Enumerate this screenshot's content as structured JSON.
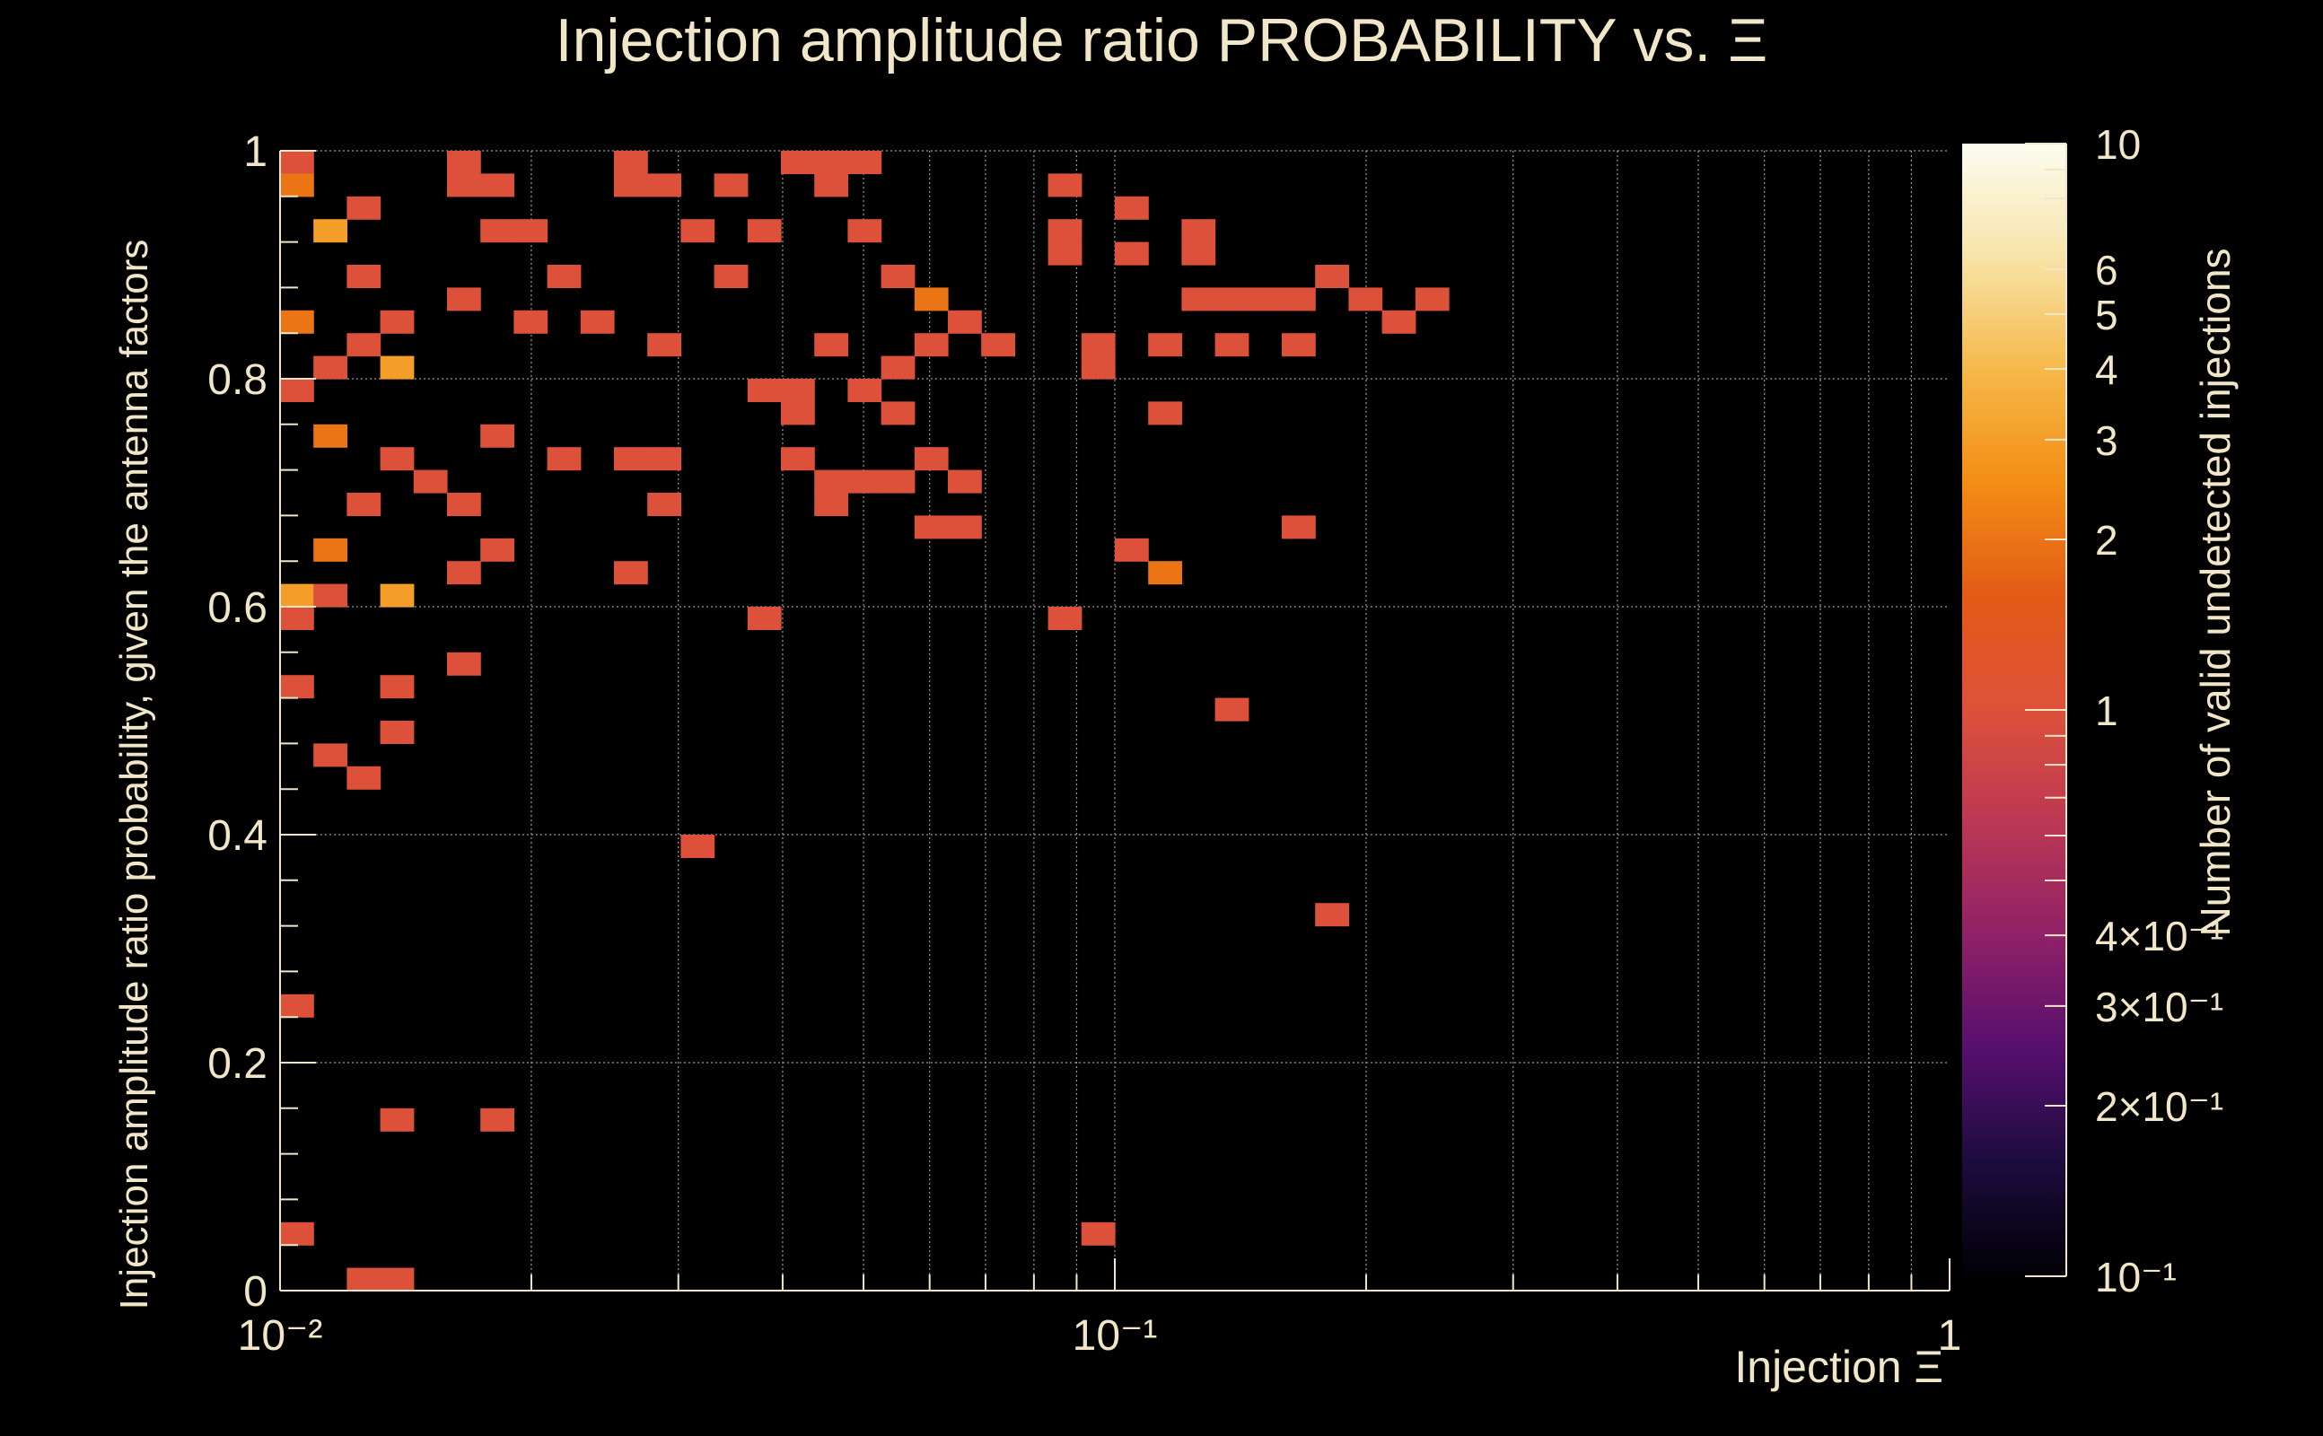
{
  "colors": {
    "background": "#000000",
    "text": "#f2e6c8",
    "grid": "#9a9a9a",
    "cmap_stops": [
      "#000004",
      "#1c0c3e",
      "#560f6e",
      "#8f2168",
      "#bc3754",
      "#dd513a",
      "#e35a17",
      "#f38d14",
      "#f6b84a",
      "#f7e4a8",
      "#fcfcf0"
    ]
  },
  "chart_data": {
    "type": "heatmap",
    "title": "Injection amplitude ratio PROBABILITY vs.  Ξ",
    "xlabel": "Injection Ξ",
    "ylabel": "Injection amplitude ratio probability, given the antenna factors",
    "zlabel": "Number of valid undetected injections",
    "xscale": "log",
    "xlim": [
      0.01,
      1
    ],
    "ylim": [
      0,
      1
    ],
    "zscale": "log",
    "zlim": [
      0.1,
      10
    ],
    "x_ticks": [
      {
        "value": 0.01,
        "label": "10⁻²"
      },
      {
        "value": 0.1,
        "label": "10⁻¹"
      },
      {
        "value": 1,
        "label": "1"
      }
    ],
    "y_ticks": [
      {
        "value": 0,
        "label": "0"
      },
      {
        "value": 0.2,
        "label": "0.2"
      },
      {
        "value": 0.4,
        "label": "0.4"
      },
      {
        "value": 0.6,
        "label": "0.6"
      },
      {
        "value": 0.8,
        "label": "0.8"
      },
      {
        "value": 1,
        "label": "1"
      }
    ],
    "z_ticks": [
      {
        "value": 10,
        "label": "10"
      },
      {
        "value": 6,
        "label": "6"
      },
      {
        "value": 5,
        "label": "5"
      },
      {
        "value": 4,
        "label": "4"
      },
      {
        "value": 3,
        "label": "3"
      },
      {
        "value": 2,
        "label": "2"
      },
      {
        "value": 1,
        "label": "1"
      },
      {
        "value": 0.4,
        "label": "4×10⁻¹"
      },
      {
        "value": 0.3,
        "label": "3×10⁻¹"
      },
      {
        "value": 0.2,
        "label": "2×10⁻¹"
      },
      {
        "value": 0.1,
        "label": "10⁻¹"
      }
    ],
    "grid": true,
    "n_xbins": 50,
    "n_ybins": 50,
    "cells": [
      [
        0,
        49,
        1
      ],
      [
        5,
        49,
        1
      ],
      [
        10,
        49,
        1
      ],
      [
        15,
        49,
        1
      ],
      [
        16,
        49,
        1
      ],
      [
        17,
        49,
        1
      ],
      [
        0,
        48,
        2
      ],
      [
        5,
        48,
        1
      ],
      [
        6,
        48,
        1
      ],
      [
        10,
        48,
        1
      ],
      [
        11,
        48,
        1
      ],
      [
        13,
        48,
        1
      ],
      [
        16,
        48,
        1
      ],
      [
        23,
        48,
        1
      ],
      [
        2,
        47,
        1
      ],
      [
        25,
        47,
        1
      ],
      [
        1,
        46,
        3
      ],
      [
        6,
        46,
        1
      ],
      [
        7,
        46,
        1
      ],
      [
        12,
        46,
        1
      ],
      [
        14,
        46,
        1
      ],
      [
        17,
        46,
        1
      ],
      [
        23,
        46,
        1
      ],
      [
        27,
        46,
        1
      ],
      [
        23,
        45,
        1
      ],
      [
        25,
        45,
        1
      ],
      [
        27,
        45,
        1
      ],
      [
        2,
        44,
        1
      ],
      [
        8,
        44,
        1
      ],
      [
        13,
        44,
        1
      ],
      [
        18,
        44,
        1
      ],
      [
        31,
        44,
        1
      ],
      [
        5,
        43,
        1
      ],
      [
        19,
        43,
        2
      ],
      [
        27,
        43,
        1
      ],
      [
        28,
        43,
        1
      ],
      [
        29,
        43,
        1
      ],
      [
        30,
        43,
        1
      ],
      [
        32,
        43,
        1
      ],
      [
        34,
        43,
        1
      ],
      [
        0,
        42,
        2
      ],
      [
        3,
        42,
        1
      ],
      [
        7,
        42,
        1
      ],
      [
        9,
        42,
        1
      ],
      [
        20,
        42,
        1
      ],
      [
        33,
        42,
        1
      ],
      [
        2,
        41,
        1
      ],
      [
        11,
        41,
        1
      ],
      [
        16,
        41,
        1
      ],
      [
        19,
        41,
        1
      ],
      [
        21,
        41,
        1
      ],
      [
        24,
        41,
        1
      ],
      [
        26,
        41,
        1
      ],
      [
        28,
        41,
        1
      ],
      [
        30,
        41,
        1
      ],
      [
        1,
        40,
        1
      ],
      [
        3,
        40,
        3
      ],
      [
        18,
        40,
        1
      ],
      [
        24,
        40,
        1
      ],
      [
        0,
        39,
        1
      ],
      [
        14,
        39,
        1
      ],
      [
        15,
        39,
        1
      ],
      [
        17,
        39,
        1
      ],
      [
        15,
        38,
        1
      ],
      [
        18,
        38,
        1
      ],
      [
        26,
        38,
        1
      ],
      [
        1,
        37,
        2
      ],
      [
        6,
        37,
        1
      ],
      [
        3,
        36,
        1
      ],
      [
        8,
        36,
        1
      ],
      [
        10,
        36,
        1
      ],
      [
        11,
        36,
        1
      ],
      [
        15,
        36,
        1
      ],
      [
        19,
        36,
        1
      ],
      [
        4,
        35,
        1
      ],
      [
        16,
        35,
        1
      ],
      [
        17,
        35,
        1
      ],
      [
        18,
        35,
        1
      ],
      [
        20,
        35,
        1
      ],
      [
        2,
        34,
        1
      ],
      [
        5,
        34,
        1
      ],
      [
        11,
        34,
        1
      ],
      [
        16,
        34,
        1
      ],
      [
        19,
        33,
        1
      ],
      [
        20,
        33,
        1
      ],
      [
        30,
        33,
        1
      ],
      [
        1,
        32,
        2
      ],
      [
        6,
        32,
        1
      ],
      [
        25,
        32,
        1
      ],
      [
        5,
        31,
        1
      ],
      [
        10,
        31,
        1
      ],
      [
        26,
        31,
        2
      ],
      [
        0,
        30,
        3
      ],
      [
        1,
        30,
        1
      ],
      [
        3,
        30,
        3
      ],
      [
        0,
        29,
        1
      ],
      [
        14,
        29,
        1
      ],
      [
        23,
        29,
        1
      ],
      [
        5,
        27,
        1
      ],
      [
        0,
        26,
        1
      ],
      [
        3,
        26,
        1
      ],
      [
        28,
        25,
        1
      ],
      [
        3,
        24,
        1
      ],
      [
        1,
        23,
        1
      ],
      [
        2,
        22,
        1
      ],
      [
        12,
        19,
        1
      ],
      [
        31,
        16,
        1
      ],
      [
        0,
        12,
        1
      ],
      [
        3,
        7,
        1
      ],
      [
        6,
        7,
        1
      ],
      [
        0,
        2,
        1
      ],
      [
        24,
        2,
        1
      ],
      [
        2,
        0,
        1
      ],
      [
        3,
        0,
        1
      ]
    ]
  }
}
